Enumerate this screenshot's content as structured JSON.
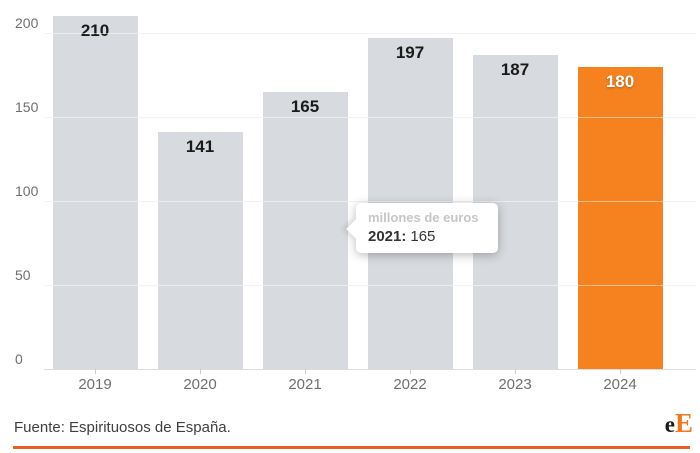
{
  "chart_data": {
    "type": "bar",
    "categories": [
      "2019",
      "2020",
      "2021",
      "2022",
      "2023",
      "2024"
    ],
    "values": [
      210,
      141,
      165,
      197,
      187,
      180
    ],
    "title": "",
    "xlabel": "",
    "ylabel": "",
    "unit": "millones de euros",
    "ylim": [
      0,
      215
    ],
    "yticks": [
      0,
      50,
      100,
      150,
      200
    ],
    "grid": true,
    "highlight_index": 5
  },
  "colors": {
    "bar_gray": "#d7dade",
    "bar_highlight": "#f5821f",
    "gridline": "#e7e7e7",
    "axis_line": "#dddddd",
    "axis_text": "#6f6f6f",
    "value_label": "#1a1a1a",
    "value_label_highlight": "#ffffff",
    "tooltip_title": "#c6c6c6",
    "tooltip_text": "#333333",
    "footer_text": "#3f3f3f",
    "footer_rule": "#ec5c26",
    "logo_black": "#1a1a1a",
    "logo_orange": "#f0791d"
  },
  "tooltip": {
    "title": "millones de euros",
    "label": "2021:",
    "value": "165"
  },
  "footer": {
    "source": "Fuente: Espirituosos de España.",
    "logo_e": "e",
    "logo_cap": "E"
  }
}
